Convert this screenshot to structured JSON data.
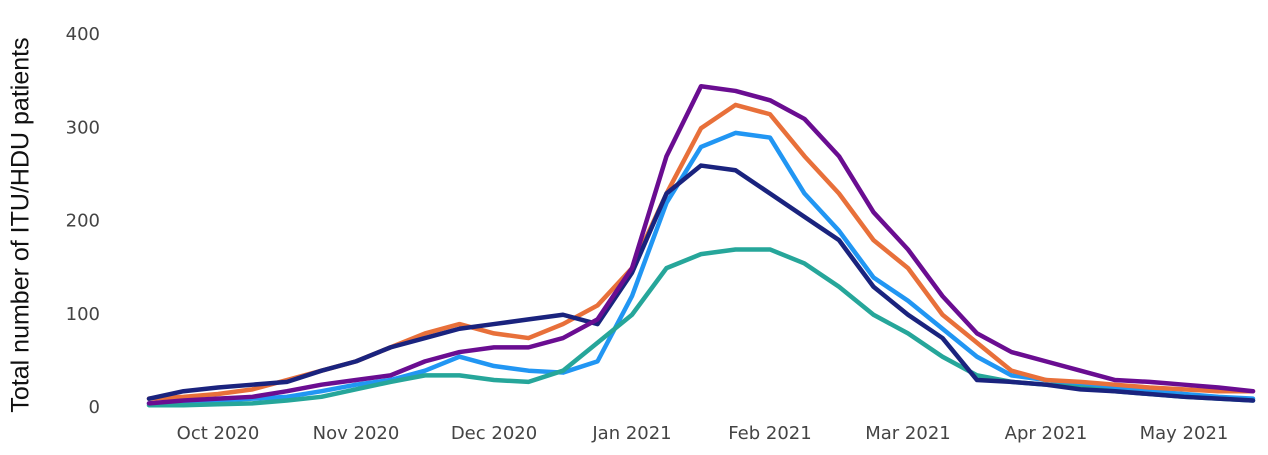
{
  "chart_data": {
    "type": "line",
    "ylabel": "Total number of ITU/HDU patients",
    "categories": [
      null,
      null,
      "Oct 2020",
      null,
      null,
      null,
      "Nov 2020",
      null,
      null,
      null,
      "Dec 2020",
      null,
      null,
      null,
      "Jan 2021",
      null,
      null,
      null,
      "Feb 2021",
      null,
      null,
      null,
      "Mar 2021",
      null,
      null,
      null,
      "Apr 2021",
      null,
      null,
      null,
      "May 2021",
      null,
      null
    ],
    "series": [
      {
        "color": "#2196f3",
        "values": [
          5,
          5,
          8,
          10,
          12,
          18,
          25,
          30,
          40,
          55,
          45,
          40,
          38,
          50,
          120,
          220,
          280,
          295,
          290,
          230,
          190,
          140,
          115,
          85,
          55,
          35,
          30,
          25,
          22,
          18,
          15,
          12,
          10
        ]
      },
      {
        "color": "#e8703a",
        "values": [
          10,
          12,
          15,
          20,
          30,
          40,
          50,
          65,
          80,
          90,
          80,
          75,
          90,
          110,
          150,
          230,
          300,
          325,
          315,
          270,
          230,
          180,
          150,
          100,
          70,
          40,
          30,
          28,
          25,
          22,
          20,
          18,
          18
        ]
      },
      {
        "color": "#26a69a",
        "values": [
          3,
          3,
          4,
          5,
          8,
          12,
          20,
          28,
          35,
          35,
          30,
          28,
          40,
          70,
          100,
          150,
          165,
          170,
          170,
          155,
          130,
          100,
          80,
          55,
          35,
          28,
          25,
          22,
          18,
          15,
          12,
          10,
          8
        ]
      },
      {
        "color": "#1a237e",
        "values": [
          10,
          18,
          22,
          25,
          28,
          40,
          50,
          65,
          75,
          85,
          90,
          95,
          100,
          90,
          145,
          230,
          260,
          255,
          230,
          205,
          180,
          130,
          100,
          75,
          30,
          28,
          25,
          20,
          18,
          15,
          12,
          10,
          8
        ]
      },
      {
        "color": "#6a0d91",
        "values": [
          5,
          8,
          10,
          12,
          18,
          25,
          30,
          35,
          50,
          60,
          65,
          65,
          75,
          95,
          150,
          270,
          345,
          340,
          330,
          310,
          270,
          210,
          170,
          120,
          80,
          60,
          50,
          40,
          30,
          28,
          25,
          22,
          18
        ]
      }
    ],
    "ylim": [
      0,
      400
    ],
    "yticks": [
      0,
      100,
      200,
      300,
      400
    ],
    "grid": false
  }
}
